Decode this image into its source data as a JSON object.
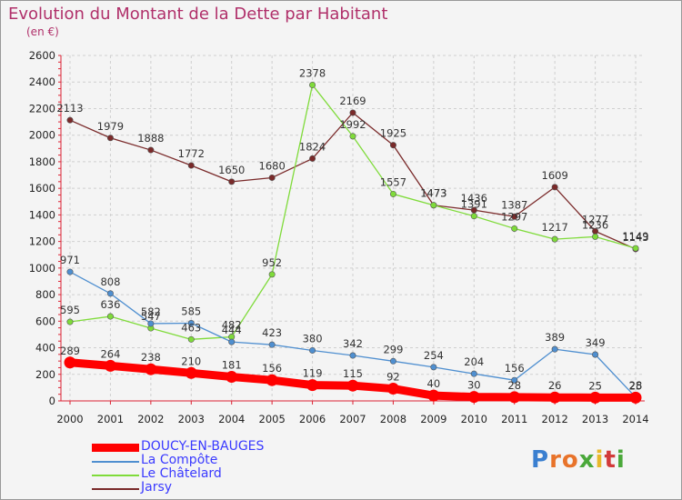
{
  "title": "Evolution du Montant de la Dette par Habitant",
  "subtitle": "(en €)",
  "logo": "Proxiti",
  "chart_data": {
    "type": "line",
    "title": "Evolution du Montant de la Dette par Habitant",
    "subtitle": "(en €)",
    "x": [
      "2000",
      "2001",
      "2002",
      "2003",
      "2004",
      "2005",
      "2006",
      "2007",
      "2008",
      "2009",
      "2010",
      "2011",
      "2012",
      "2013",
      "2014"
    ],
    "ylim": [
      0,
      2600
    ],
    "yticks": [
      0,
      200,
      400,
      600,
      800,
      1000,
      1200,
      1400,
      1600,
      1800,
      2000,
      2200,
      2400,
      2600
    ],
    "grid": true,
    "legend_position": "bottom-left",
    "series": [
      {
        "name": "DOUCY-EN-BAUGES",
        "color": "#ff0000",
        "values": [
          289,
          264,
          238,
          210,
          181,
          156,
          119,
          115,
          92,
          40,
          30,
          28,
          26,
          25,
          25
        ]
      },
      {
        "name": "La Compôte",
        "color": "#4f8fd0",
        "values": [
          971,
          808,
          582,
          585,
          444,
          423,
          380,
          342,
          299,
          254,
          204,
          156,
          389,
          349,
          28
        ]
      },
      {
        "name": "Le Châtelard",
        "color": "#7fdb3a",
        "values": [
          595,
          636,
          547,
          463,
          482,
          952,
          2378,
          1992,
          1557,
          1473,
          1391,
          1297,
          1217,
          1236,
          1149
        ]
      },
      {
        "name": "Jarsy",
        "color": "#7a2a2a",
        "values": [
          2113,
          1979,
          1888,
          1772,
          1650,
          1680,
          1824,
          2169,
          1925,
          1473,
          1436,
          1387,
          1609,
          1277,
          1143
        ]
      }
    ]
  }
}
